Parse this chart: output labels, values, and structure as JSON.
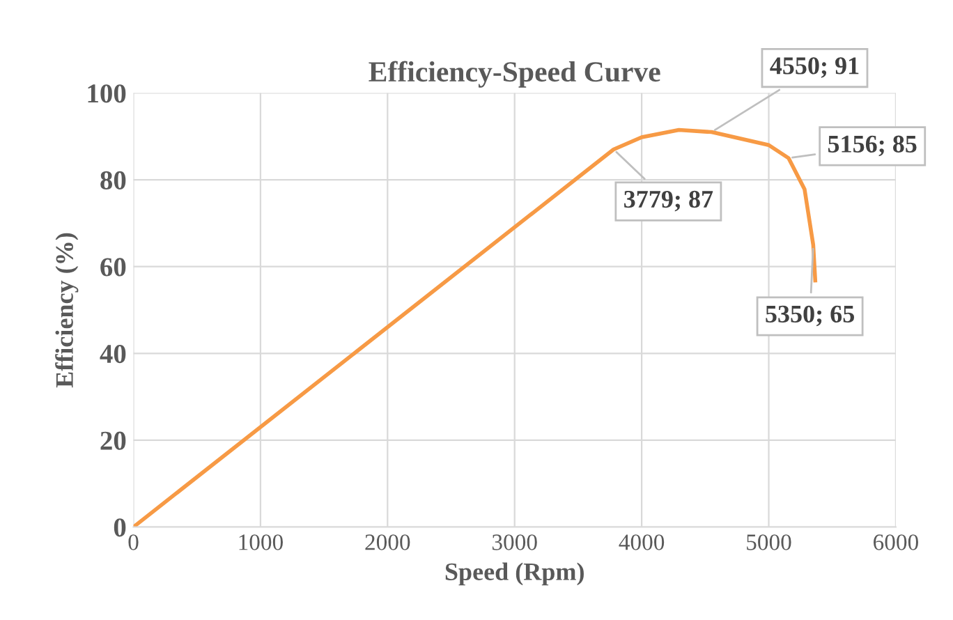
{
  "chart_data": {
    "type": "line",
    "title": "Efficiency-Speed Curve",
    "xlabel": "Speed (Rpm)",
    "ylabel": "Efficiency (%)",
    "series": [
      {
        "color": "#f79a45",
        "x": [
          0,
          3779,
          4000,
          4293,
          4550,
          5000,
          5156,
          5282,
          5350,
          5366
        ],
        "values": [
          0,
          87,
          89.8,
          91.5,
          91,
          88,
          85,
          77.8,
          65,
          56.8
        ]
      }
    ],
    "xlim": [
      0,
      6000
    ],
    "ylim": [
      0,
      100
    ],
    "xticks": [
      0,
      1000,
      2000,
      3000,
      4000,
      5000,
      6000
    ],
    "yticks": [
      0,
      20,
      40,
      60,
      80,
      100
    ],
    "grid": true,
    "legend": false,
    "marker": "none",
    "line_style": "solid",
    "annotations": [
      {
        "text": "4550; 91",
        "x": 4550,
        "y": 91
      },
      {
        "text": "3779; 87",
        "x": 3779,
        "y": 87
      },
      {
        "text": "5156; 85",
        "x": 5156,
        "y": 85
      },
      {
        "text": "5350; 65",
        "x": 5350,
        "y": 65
      }
    ]
  }
}
